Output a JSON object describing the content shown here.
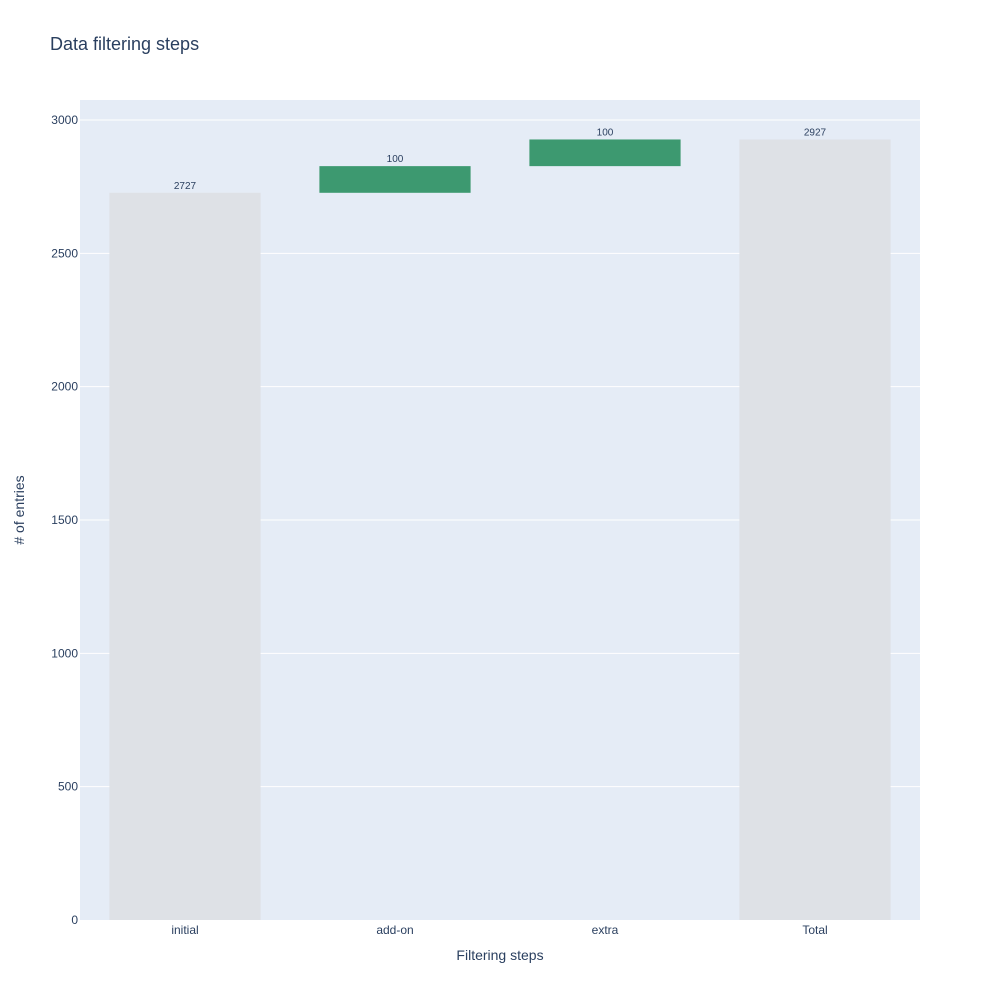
{
  "chart_data": {
    "type": "bar",
    "subtype": "waterfall",
    "title": "Data filtering steps",
    "xlabel": "Filtering steps",
    "ylabel": "# of entries",
    "categories": [
      "initial",
      "add-on",
      "extra",
      "Total"
    ],
    "measures": [
      "absolute",
      "relative",
      "relative",
      "total"
    ],
    "values": [
      2727,
      100,
      100,
      2927
    ],
    "bar_labels": [
      "2727",
      "100",
      "100",
      "2927"
    ],
    "ylim": [
      0,
      3075
    ],
    "yticks": [
      0,
      500,
      1000,
      1500,
      2000,
      2500,
      3000
    ],
    "ytick_labels": [
      "0",
      "500",
      "1000",
      "1500",
      "2000",
      "2500",
      "3000"
    ],
    "grid": true,
    "legend": "none",
    "colors": {
      "plot_background": "#e5ecf6",
      "gridline": "#ffffff",
      "absolute_total": "#dee1e6",
      "increase": "#3d9970",
      "text": "#2a3f5f"
    }
  }
}
